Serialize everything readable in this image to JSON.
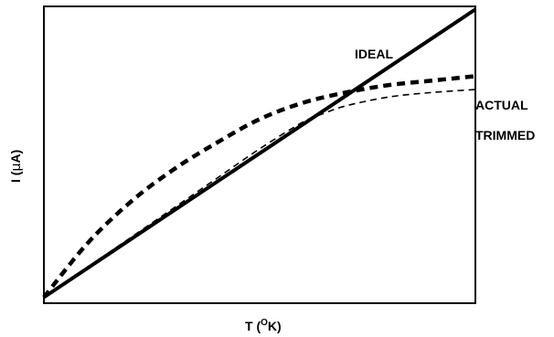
{
  "chart_data": {
    "type": "line",
    "title": "",
    "xlabel": "T (",
    "xlabel_sup": "O",
    "xlabel_end": "K)",
    "ylabel": "I (",
    "ylabel_greek": "μ",
    "ylabel_end": "A)",
    "xlim": [
      0,
      100
    ],
    "ylim": [
      0,
      100
    ],
    "grid": false,
    "series": [
      {
        "name": "IDEAL",
        "style": "solid-thick",
        "color": "#000000",
        "points": [
          [
            0,
            2
          ],
          [
            100,
            99
          ]
        ]
      },
      {
        "name": "ACTUAL",
        "style": "dashed-thick",
        "color": "#000000",
        "points": [
          [
            0,
            2
          ],
          [
            10,
            20
          ],
          [
            20,
            34
          ],
          [
            30,
            45
          ],
          [
            40,
            54
          ],
          [
            50,
            62
          ],
          [
            60,
            67.5
          ],
          [
            70,
            71
          ],
          [
            80,
            73.5
          ],
          [
            90,
            75
          ],
          [
            100,
            76.5
          ]
        ]
      },
      {
        "name": "TRIMMED",
        "style": "dashed-thin",
        "color": "#000000",
        "points": [
          [
            0,
            2
          ],
          [
            10,
            12
          ],
          [
            20,
            22
          ],
          [
            30,
            32
          ],
          [
            40,
            42
          ],
          [
            50,
            52
          ],
          [
            60,
            61
          ],
          [
            65,
            64
          ],
          [
            70,
            66.5
          ],
          [
            80,
            69.5
          ],
          [
            90,
            71
          ],
          [
            100,
            72
          ]
        ]
      }
    ]
  }
}
